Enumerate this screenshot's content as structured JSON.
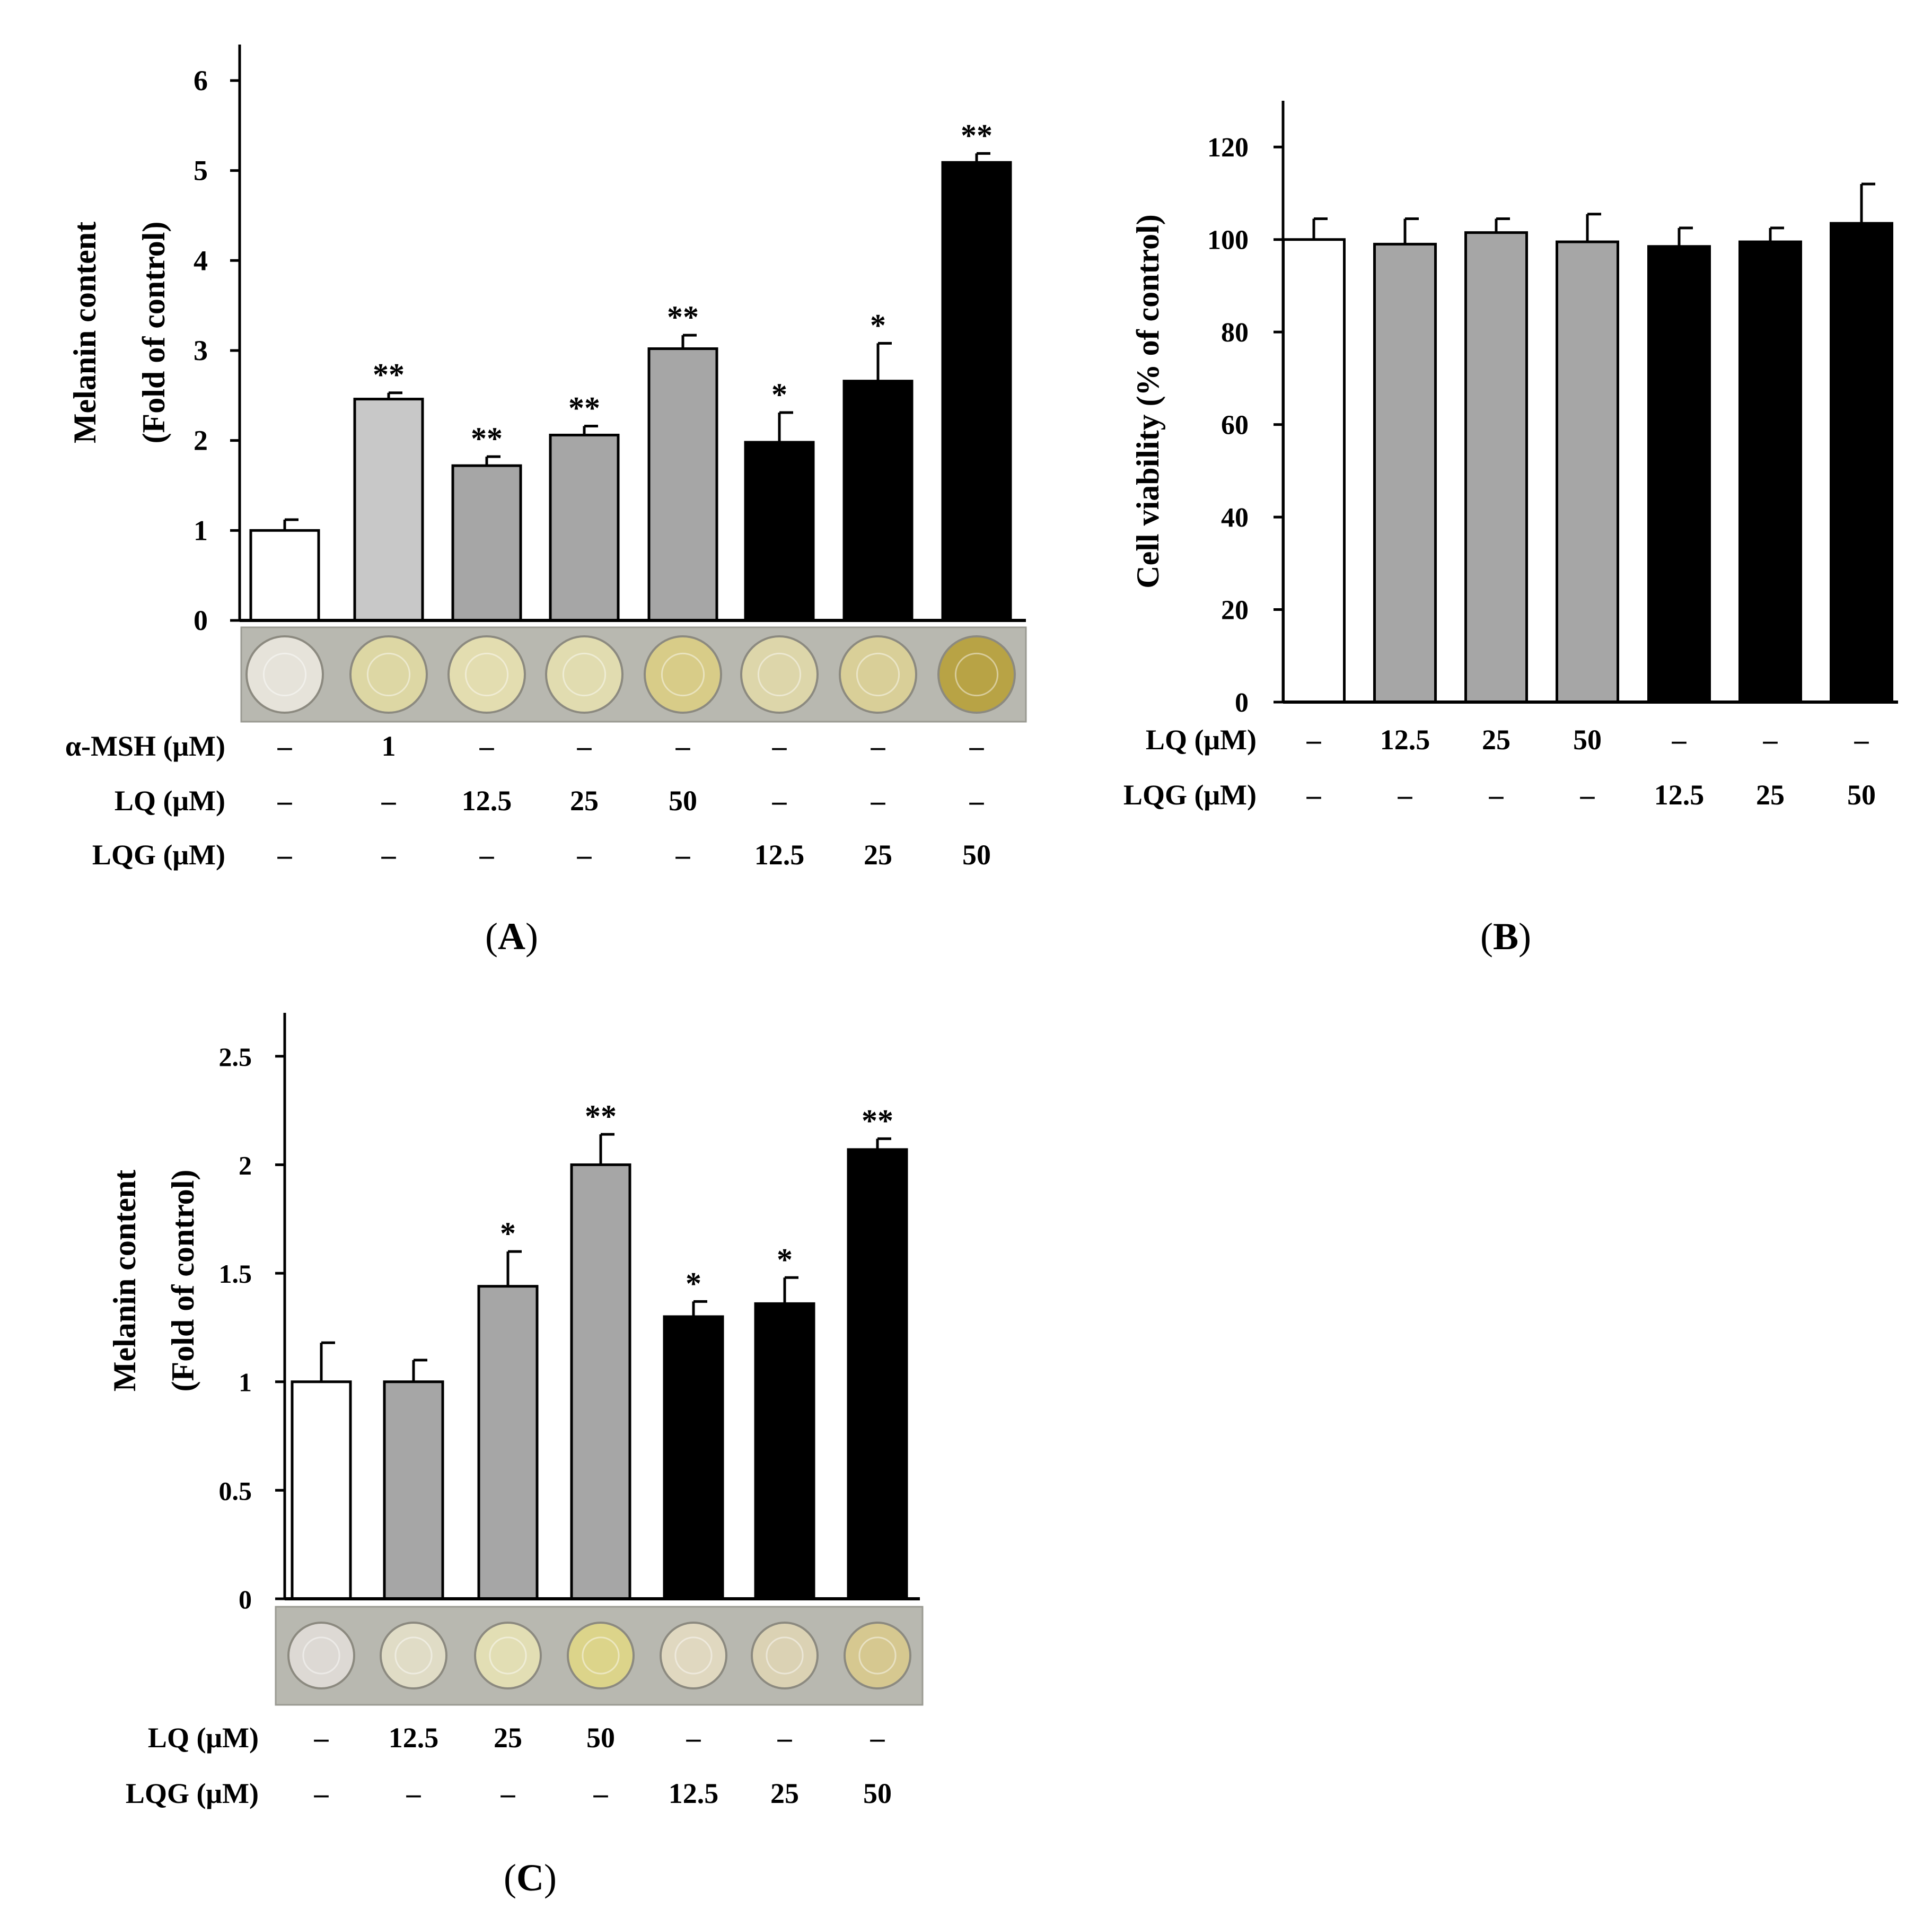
{
  "colors": {
    "white_bar": "#ffffff",
    "light_gray_bar": "#c8c8c8",
    "gray_bar": "#a6a6a6",
    "black_bar": "#000000",
    "axis": "#000000",
    "well_plate_bg": "#b8b8b0"
  },
  "chart_data": [
    {
      "panel": "A",
      "type": "bar",
      "panel_label": "A",
      "ylabel_lines": [
        "Melanin content",
        "(Fold of control)"
      ],
      "ylim": [
        0,
        6.4
      ],
      "yticks": [
        0,
        1,
        2,
        3,
        4,
        5,
        6
      ],
      "ytick_labels": [
        "0",
        "1",
        "2",
        "3",
        "4",
        "5",
        "6"
      ],
      "values": [
        1.0,
        2.46,
        1.72,
        2.06,
        3.02,
        1.98,
        2.66,
        5.09
      ],
      "errors": [
        0.12,
        0.07,
        0.1,
        0.1,
        0.15,
        0.33,
        0.42,
        0.1
      ],
      "colors": [
        "#ffffff",
        "#c8c8c8",
        "#a6a6a6",
        "#a6a6a6",
        "#a6a6a6",
        "#000000",
        "#000000",
        "#000000"
      ],
      "significance": [
        "",
        "**",
        "**",
        "**",
        "**",
        "*",
        "*",
        "**"
      ],
      "well_colors": [
        "#e6e3da",
        "#ddd7a4",
        "#e3ddb0",
        "#e1dcb0",
        "#d8cc88",
        "#ddd6aa",
        "#d9cf98",
        "#b8a345"
      ],
      "treatment_rows": [
        {
          "label": "α-MSH (μM)",
          "values": [
            "–",
            "1",
            "–",
            "–",
            "–",
            "–",
            "–",
            "–"
          ]
        },
        {
          "label": "LQ (μM)",
          "values": [
            "–",
            "–",
            "12.5",
            "25",
            "50",
            "–",
            "–",
            "–"
          ]
        },
        {
          "label": "LQG (μM)",
          "values": [
            "–",
            "–",
            "–",
            "–",
            "–",
            "12.5",
            "25",
            "50"
          ]
        }
      ]
    },
    {
      "panel": "B",
      "type": "bar",
      "panel_label": "B",
      "ylabel_lines": [
        "Cell viability (% of control)"
      ],
      "ylim": [
        0,
        130
      ],
      "yticks": [
        0,
        20,
        40,
        60,
        80,
        100,
        120
      ],
      "ytick_labels": [
        "0",
        "20",
        "40",
        "60",
        "80",
        "100",
        "120"
      ],
      "values": [
        100,
        99,
        101.5,
        99.5,
        98.5,
        99.5,
        103.5
      ],
      "errors": [
        4.5,
        5.5,
        3.0,
        6.0,
        4.0,
        3.0,
        8.5
      ],
      "colors": [
        "#ffffff",
        "#a6a6a6",
        "#a6a6a6",
        "#a6a6a6",
        "#000000",
        "#000000",
        "#000000"
      ],
      "significance": [
        "",
        "",
        "",
        "",
        "",
        "",
        ""
      ],
      "treatment_rows": [
        {
          "label": "LQ (μM)",
          "values": [
            "–",
            "12.5",
            "25",
            "50",
            "–",
            "–",
            "–"
          ]
        },
        {
          "label": "LQG (μM)",
          "values": [
            "–",
            "–",
            "–",
            "–",
            "12.5",
            "25",
            "50"
          ]
        }
      ]
    },
    {
      "panel": "C",
      "type": "bar",
      "panel_label": "C",
      "ylabel_lines": [
        "Melanin content",
        "(Fold of control)"
      ],
      "ylim": [
        0,
        2.7
      ],
      "yticks": [
        0,
        0.5,
        1,
        1.5,
        2,
        2.5
      ],
      "ytick_labels": [
        "0",
        "0.5",
        "1",
        "1.5",
        "2",
        "2.5"
      ],
      "values": [
        1.0,
        1.0,
        1.44,
        2.0,
        1.3,
        1.36,
        2.07
      ],
      "errors": [
        0.18,
        0.1,
        0.16,
        0.14,
        0.07,
        0.12,
        0.05
      ],
      "colors": [
        "#ffffff",
        "#a6a6a6",
        "#a6a6a6",
        "#a6a6a6",
        "#000000",
        "#000000",
        "#000000"
      ],
      "significance": [
        "",
        "",
        "*",
        "**",
        "*",
        "*",
        "**"
      ],
      "well_colors": [
        "#ddd9d4",
        "#e0dcc6",
        "#e2deb4",
        "#dcd48a",
        "#e0d8c0",
        "#dbd2b4",
        "#d6c890"
      ],
      "treatment_rows": [
        {
          "label": "LQ (μM)",
          "values": [
            "–",
            "12.5",
            "25",
            "50",
            "–",
            "–",
            "–"
          ]
        },
        {
          "label": "LQG (μM)",
          "values": [
            "–",
            "–",
            "–",
            "–",
            "12.5",
            "25",
            "50"
          ]
        }
      ]
    }
  ]
}
